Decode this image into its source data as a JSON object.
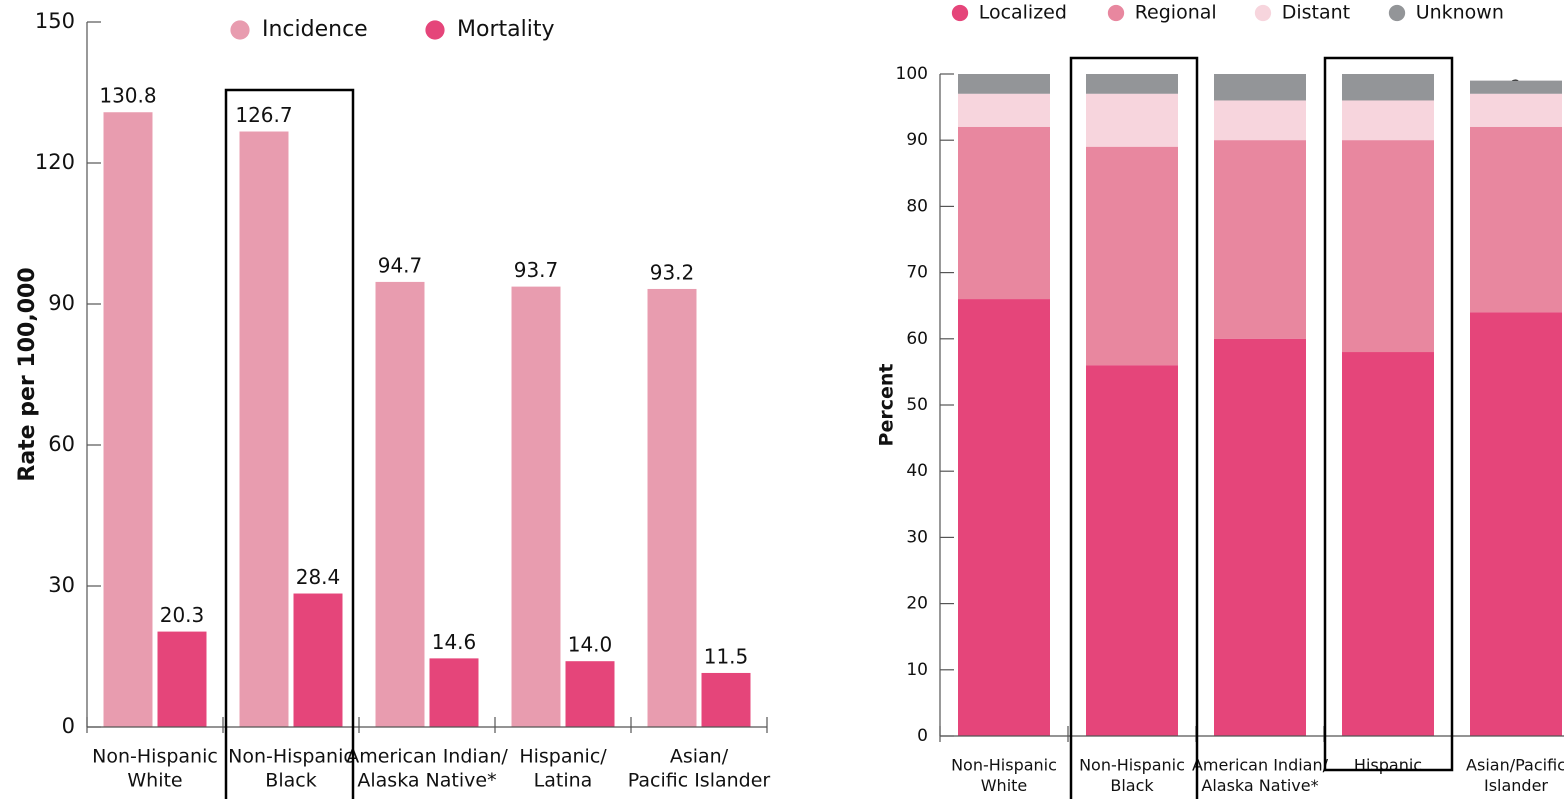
{
  "chart_data": [
    {
      "type": "bar",
      "stacked": false,
      "ylabel": "Rate per 100,000",
      "categories": [
        [
          "Non-Hispanic",
          "White"
        ],
        [
          "Non-Hispanic",
          "Black"
        ],
        [
          "American Indian/",
          "Alaska Native*"
        ],
        [
          "Hispanic/",
          "Latina"
        ],
        [
          "Asian/",
          "Pacific Islander"
        ]
      ],
      "series": [
        {
          "name": "Incidence",
          "color": "#e89caf",
          "values": [
            130.8,
            126.7,
            94.7,
            93.7,
            93.2
          ]
        },
        {
          "name": "Mortality",
          "color": "#e5457a",
          "values": [
            20.3,
            28.4,
            14.6,
            14.0,
            11.5
          ],
          "value_labels": [
            "20.3",
            "28.4",
            "14.6",
            "14.0",
            "11.5"
          ]
        }
      ],
      "ylim": [
        0,
        150
      ],
      "yticks": [
        0,
        30,
        60,
        90,
        120,
        150
      ]
    },
    {
      "type": "bar",
      "stacked": true,
      "ylabel": "Percent",
      "categories": [
        [
          "Non-Hispanic",
          "White"
        ],
        [
          "Non-Hispanic",
          "Black"
        ],
        [
          "American Indian/",
          "Alaska Native*"
        ],
        [
          "Hispanic"
        ],
        [
          "Asian/Pacific",
          "Islander"
        ]
      ],
      "series": [
        {
          "name": "Localized",
          "color": "#e5457a",
          "values": [
            66,
            56,
            60,
            58,
            64
          ]
        },
        {
          "name": "Regional",
          "color": "#e8879f",
          "values": [
            26,
            33,
            30,
            32,
            28
          ]
        },
        {
          "name": "Distant",
          "color": "#f7d5dd",
          "values": [
            5,
            8,
            6,
            6,
            5
          ]
        },
        {
          "name": "Unknown",
          "color": "#939598",
          "values": [
            3,
            3,
            4,
            4,
            2
          ]
        }
      ],
      "ylim": [
        0,
        100
      ],
      "yticks": [
        0,
        10,
        20,
        30,
        40,
        50,
        60,
        70,
        80,
        90,
        100
      ]
    }
  ]
}
